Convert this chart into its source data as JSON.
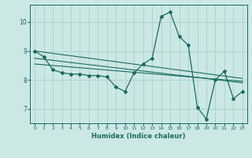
{
  "xlabel": "Humidex (Indice chaleur)",
  "ylabel": "",
  "background_color": "#cce8e5",
  "grid_color": "#afd4d0",
  "line_color": "#1a6b62",
  "xlim": [
    -0.5,
    23.5
  ],
  "ylim": [
    6.5,
    10.6
  ],
  "yticks": [
    7,
    8,
    9,
    10
  ],
  "xticks": [
    0,
    1,
    2,
    3,
    4,
    5,
    6,
    7,
    8,
    9,
    10,
    11,
    12,
    13,
    14,
    15,
    16,
    17,
    18,
    19,
    20,
    21,
    22,
    23
  ],
  "series1_x": [
    0,
    1,
    2,
    3,
    4,
    5,
    6,
    7,
    8,
    9,
    10,
    11,
    12,
    13,
    14,
    15,
    16,
    17,
    18,
    19,
    20,
    21,
    22,
    23
  ],
  "series1_y": [
    9.0,
    8.8,
    8.35,
    8.25,
    8.2,
    8.2,
    8.15,
    8.15,
    8.1,
    7.75,
    7.6,
    8.25,
    8.55,
    8.75,
    10.2,
    10.35,
    9.5,
    9.2,
    7.05,
    6.65,
    8.0,
    8.3,
    7.35,
    7.6
  ],
  "series2_x": [
    0,
    23
  ],
  "series2_y": [
    9.0,
    8.05
  ],
  "series3_x": [
    0,
    23
  ],
  "series3_y": [
    8.75,
    7.9
  ],
  "series4_x": [
    0,
    23
  ],
  "series4_y": [
    8.55,
    7.95
  ]
}
